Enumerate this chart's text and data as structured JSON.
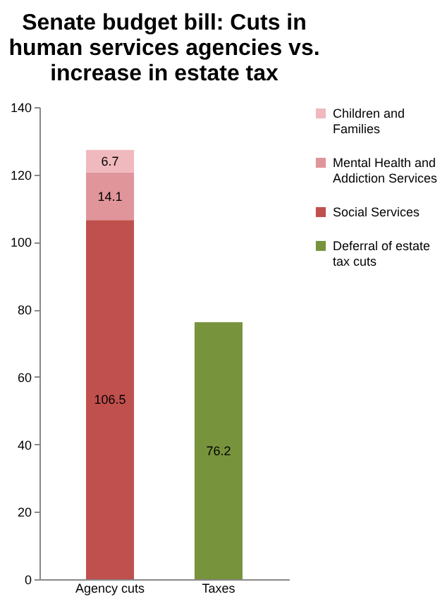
{
  "chart_data": {
    "type": "bar",
    "title": "Senate budget bill: Cuts in human services agencies vs. increase in estate tax",
    "categories": [
      "Agency cuts",
      "Taxes"
    ],
    "stacked": true,
    "series": [
      {
        "name": "Deferral of estate tax cuts",
        "color": "#77933c",
        "values": [
          null,
          76.2
        ]
      },
      {
        "name": "Social Services",
        "color": "#c0504d",
        "values": [
          106.5,
          null
        ]
      },
      {
        "name": "Mental Health and Addiction Services",
        "color": "#e0959a",
        "values": [
          14.1,
          null
        ]
      },
      {
        "name": "Children and Families",
        "color": "#f0b9bd",
        "values": [
          6.7,
          null
        ]
      }
    ],
    "ylim": [
      0,
      140
    ],
    "yticks": [
      0,
      20,
      40,
      60,
      80,
      100,
      120,
      140
    ],
    "data_labels": true,
    "legend": "right"
  }
}
